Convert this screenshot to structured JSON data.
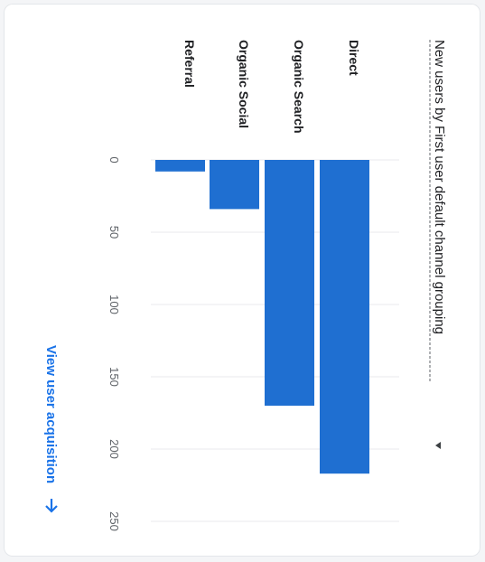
{
  "card": {
    "title": "New users by First user default channel grouping",
    "link_label": "View user acquisition",
    "dropdown_icon": "caret-down-icon",
    "link_icon": "arrow-right-icon"
  },
  "colors": {
    "bar": "#1f6fd1",
    "link": "#1a73e8",
    "grid": "#e8eaed"
  },
  "chart_data": {
    "type": "bar",
    "orientation": "horizontal",
    "title": "New users by First user default channel grouping",
    "categories": [
      "Direct",
      "Organic Search",
      "Organic Social",
      "Referral"
    ],
    "values": [
      217,
      170,
      34,
      8
    ],
    "ticks": [
      0,
      50,
      100,
      150,
      200,
      250
    ],
    "xlim": [
      0,
      250
    ],
    "grid": true,
    "legend": "none"
  }
}
